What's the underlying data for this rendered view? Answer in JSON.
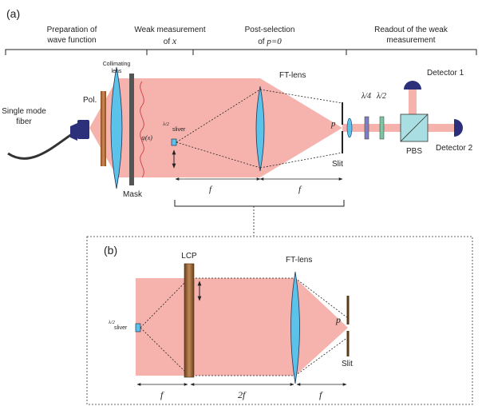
{
  "panel_a": {
    "label": "(a)",
    "sections": {
      "prep": [
        "Preparation of",
        "wave function"
      ],
      "weak": [
        "Weak measurement",
        "of "
      ],
      "weak_var": "x",
      "post": [
        "Post-selection",
        "of "
      ],
      "post_var": "p=0",
      "readout": [
        "Readout of the weak",
        "measurement"
      ]
    },
    "labels": {
      "fiber": [
        "Single mode",
        "fiber"
      ],
      "pol": "Pol.",
      "collimating": [
        "Collimating",
        "lens"
      ],
      "psi": "ψ(x)",
      "mask": "Mask",
      "sliver_frac": "λ/2",
      "sliver": "sliver",
      "ft_lens": "FT-lens",
      "p": "p",
      "slit": "Slit",
      "f1": "f",
      "f2": "f",
      "quarter_wave": "λ/4",
      "half_wave": "λ/2",
      "detector1": "Detector 1",
      "detector2": "Detector 2",
      "pbs": "PBS"
    }
  },
  "panel_b": {
    "label": "(b)",
    "labels": {
      "lcp": "LCP",
      "ft_lens": "FT-lens",
      "sliver_frac": "λ/2",
      "sliver": "sliver",
      "p": "p",
      "slit": "Slit",
      "f1": "f",
      "f2": "2f",
      "f3": "f"
    }
  },
  "colors": {
    "beam": "#f6b3ad",
    "lens": "#5bc2ea",
    "polarizer": "#b56a35",
    "mask": "#555555",
    "fiber_connector": "#2c2f7a",
    "detector": "#2c2f7a",
    "pbs": "#a9dfe2",
    "quarter_wave_plate": "#7f7fc4",
    "half_wave_plate": "#7fc4a3",
    "lcp": "#8b5a2b"
  }
}
